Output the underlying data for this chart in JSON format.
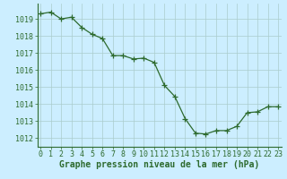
{
  "x": [
    0,
    1,
    2,
    3,
    4,
    5,
    6,
    7,
    8,
    9,
    10,
    11,
    12,
    13,
    14,
    15,
    16,
    17,
    18,
    19,
    20,
    21,
    22,
    23
  ],
  "y": [
    1019.3,
    1019.4,
    1019.0,
    1019.1,
    1018.5,
    1018.1,
    1017.85,
    1016.85,
    1016.85,
    1016.65,
    1016.7,
    1016.45,
    1015.1,
    1014.45,
    1013.15,
    1012.3,
    1012.25,
    1012.45,
    1012.45,
    1012.7,
    1013.5,
    1013.55,
    1013.85,
    1013.85
  ],
  "line_color": "#2d6a2d",
  "marker": "+",
  "marker_size": 4,
  "bg_color": "#cceeff",
  "grid_color": "#aacccc",
  "xlabel": "Graphe pression niveau de la mer (hPa)",
  "xlabel_fontsize": 7,
  "tick_fontsize": 6,
  "ylim": [
    1011.5,
    1019.9
  ],
  "yticks": [
    1012,
    1013,
    1014,
    1015,
    1016,
    1017,
    1018,
    1019
  ],
  "xlim": [
    -0.3,
    23.3
  ],
  "xticks": [
    0,
    1,
    2,
    3,
    4,
    5,
    6,
    7,
    8,
    9,
    10,
    11,
    12,
    13,
    14,
    15,
    16,
    17,
    18,
    19,
    20,
    21,
    22,
    23
  ]
}
